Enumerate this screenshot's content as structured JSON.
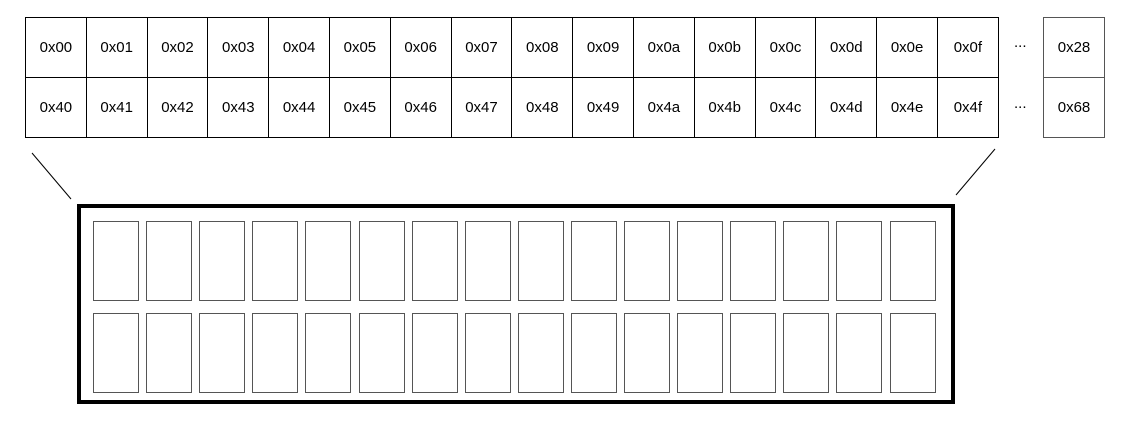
{
  "row1": [
    "0x00",
    "0x01",
    "0x02",
    "0x03",
    "0x04",
    "0x05",
    "0x06",
    "0x07",
    "0x08",
    "0x09",
    "0x0a",
    "0x0b",
    "0x0c",
    "0x0d",
    "0x0e",
    "0x0f"
  ],
  "row2": [
    "0x40",
    "0x41",
    "0x42",
    "0x43",
    "0x44",
    "0x45",
    "0x46",
    "0x47",
    "0x48",
    "0x49",
    "0x4a",
    "0x4b",
    "0x4c",
    "0x4d",
    "0x4e",
    "0x4f"
  ],
  "ellipsis": "...",
  "row1_last": "0x28",
  "row2_last": "0x68",
  "lcd": {
    "columns": 16,
    "rows": 2
  }
}
